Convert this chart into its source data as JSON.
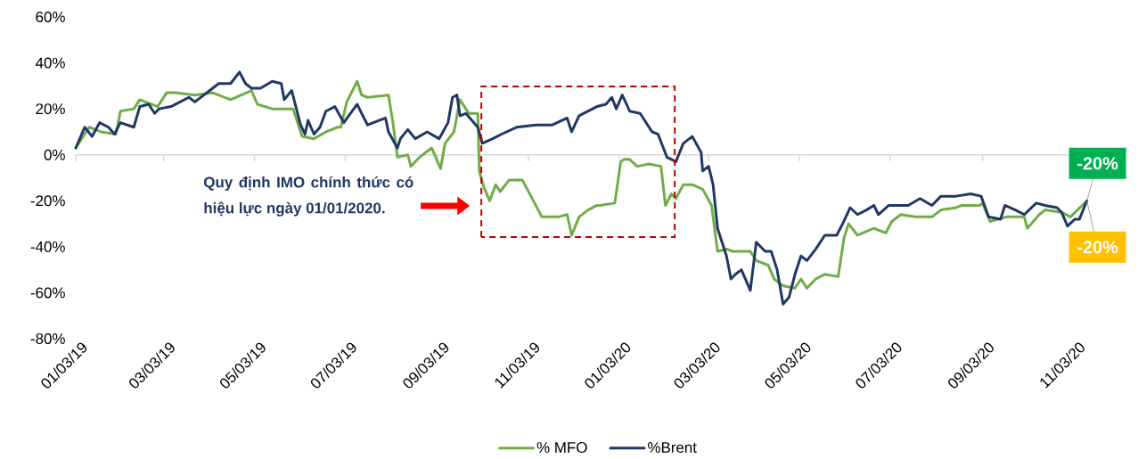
{
  "chart_data": {
    "type": "line",
    "xlim": [
      "2019-01-03",
      "2020-12-05"
    ],
    "xticks": [
      {
        "value": "2019-01-03",
        "label": "01/03/19"
      },
      {
        "value": "2019-03-03",
        "label": "03/03/19"
      },
      {
        "value": "2019-05-03",
        "label": "05/03/19"
      },
      {
        "value": "2019-07-03",
        "label": "07/03/19"
      },
      {
        "value": "2019-09-03",
        "label": "09/03/19"
      },
      {
        "value": "2019-11-03",
        "label": "11/03/19"
      },
      {
        "value": "2020-01-03",
        "label": "01/03/20"
      },
      {
        "value": "2020-03-03",
        "label": "03/03/20"
      },
      {
        "value": "2020-05-03",
        "label": "05/03/20"
      },
      {
        "value": "2020-07-03",
        "label": "07/03/20"
      },
      {
        "value": "2020-09-03",
        "label": "09/03/20"
      },
      {
        "value": "2020-11-03",
        "label": "11/03/20"
      }
    ],
    "ylim": [
      -80,
      60
    ],
    "yticks": [
      {
        "value": -80,
        "label": "-80%"
      },
      {
        "value": -60,
        "label": "-60%"
      },
      {
        "value": -40,
        "label": "-40%"
      },
      {
        "value": -20,
        "label": "-20%"
      },
      {
        "value": 0,
        "label": "0%"
      },
      {
        "value": 20,
        "label": "20%"
      },
      {
        "value": 40,
        "label": "40%"
      },
      {
        "value": 60,
        "label": "60%"
      }
    ],
    "legend": "bottom",
    "marker": "none",
    "line_style": "solid",
    "grid": false,
    "ref_lines": [
      {
        "axis": "y",
        "value": 0,
        "color": "#d9d9d9"
      }
    ],
    "annotations": [
      "Quy định IMO chính thức có hiệu lực ngày 01/01/2020.",
      {
        "text": "-20%",
        "x": "2020-11-12",
        "y": -20
      },
      {
        "text": "-20%",
        "x": "2020-11-12",
        "y": -20
      }
    ],
    "series": [
      {
        "name": "% MFO",
        "color": "#70ad47",
        "x": [
          "2019-01-03",
          "2019-01-12",
          "2019-01-20",
          "2019-01-30",
          "2019-02-02",
          "2019-02-11",
          "2019-02-15",
          "2019-02-27",
          "2019-03-05",
          "2019-03-11",
          "2019-03-24",
          "2019-04-05",
          "2019-04-17",
          "2019-05-01",
          "2019-05-05",
          "2019-05-15",
          "2019-05-29",
          "2019-06-04",
          "2019-06-12",
          "2019-06-20",
          "2019-06-28",
          "2019-06-30",
          "2019-07-04",
          "2019-07-11",
          "2019-07-14",
          "2019-07-18",
          "2019-08-01",
          "2019-08-04",
          "2019-08-07",
          "2019-08-14",
          "2019-08-16",
          "2019-08-22",
          "2019-08-30",
          "2019-09-05",
          "2019-09-08",
          "2019-09-14",
          "2019-09-18",
          "2019-09-24",
          "2019-09-30",
          "2019-10-01",
          "2019-10-04",
          "2019-10-08",
          "2019-10-12",
          "2019-10-15",
          "2019-10-21",
          "2019-10-30",
          "2019-11-12",
          "2019-11-23",
          "2019-11-29",
          "2019-12-02",
          "2019-12-07",
          "2019-12-13",
          "2019-12-19",
          "2019-12-21",
          "2019-12-31",
          "2020-01-04",
          "2020-01-06",
          "2020-01-10",
          "2020-01-15",
          "2020-01-23",
          "2020-01-31",
          "2020-02-03",
          "2020-02-07",
          "2020-02-10",
          "2020-02-15",
          "2020-02-21",
          "2020-02-28",
          "2020-03-05",
          "2020-03-09",
          "2020-03-15",
          "2020-03-19",
          "2020-03-31",
          "2020-04-04",
          "2020-04-12",
          "2020-04-16",
          "2020-04-22",
          "2020-04-30",
          "2020-05-04",
          "2020-05-08",
          "2020-05-14",
          "2020-05-20",
          "2020-05-29",
          "2020-06-02",
          "2020-06-05",
          "2020-06-11",
          "2020-06-22",
          "2020-06-30",
          "2020-07-04",
          "2020-07-10",
          "2020-07-20",
          "2020-07-31",
          "2020-08-06",
          "2020-08-16",
          "2020-08-20",
          "2020-09-01",
          "2020-09-03",
          "2020-09-08",
          "2020-09-19",
          "2020-10-01",
          "2020-10-03",
          "2020-10-11",
          "2020-10-15",
          "2020-10-26",
          "2020-11-01",
          "2020-11-12"
        ],
        "values": [
          3,
          12,
          10,
          9,
          19,
          20,
          24,
          21,
          27,
          27,
          26,
          27,
          24,
          28,
          22,
          20,
          20,
          8,
          7,
          10,
          12,
          12,
          23,
          32,
          26,
          25,
          26,
          14,
          -1,
          0,
          -5,
          -1,
          3,
          -6,
          5,
          10,
          24,
          18,
          18,
          -7,
          -14,
          -20,
          -13,
          -16,
          -11,
          -11,
          -27,
          -27,
          -26,
          -35,
          -27,
          -24,
          -22,
          -22,
          -21,
          -3,
          -2,
          -2,
          -5,
          -4,
          -5,
          -22,
          -17,
          -19,
          -13,
          -13,
          -15,
          -22,
          -42,
          -41,
          -42,
          -42,
          -46,
          -48,
          -54,
          -57,
          -58,
          -54,
          -58,
          -54,
          -52,
          -53,
          -36,
          -30,
          -35,
          -32,
          -34,
          -29,
          -26,
          -27,
          -27,
          -24,
          -23,
          -22,
          -22,
          -21,
          -29,
          -27,
          -27,
          -32,
          -26,
          -24,
          -25,
          -27,
          -20
        ]
      },
      {
        "name": "%Brent",
        "color": "#1f3864",
        "x": [
          "2019-01-03",
          "2019-01-09",
          "2019-01-14",
          "2019-01-19",
          "2019-01-25",
          "2019-01-29",
          "2019-02-02",
          "2019-02-11",
          "2019-02-15",
          "2019-02-21",
          "2019-02-25",
          "2019-02-28",
          "2019-03-08",
          "2019-03-14",
          "2019-03-20",
          "2019-03-24",
          "2019-04-03",
          "2019-04-09",
          "2019-04-17",
          "2019-04-23",
          "2019-04-27",
          "2019-05-01",
          "2019-05-07",
          "2019-05-15",
          "2019-05-21",
          "2019-05-23",
          "2019-05-28",
          "2019-06-03",
          "2019-06-06",
          "2019-06-08",
          "2019-06-12",
          "2019-06-16",
          "2019-06-20",
          "2019-06-26",
          "2019-07-02",
          "2019-07-11",
          "2019-07-14",
          "2019-07-18",
          "2019-07-30",
          "2019-08-01",
          "2019-08-07",
          "2019-08-09",
          "2019-08-14",
          "2019-08-19",
          "2019-08-27",
          "2019-09-04",
          "2019-09-10",
          "2019-09-13",
          "2019-09-16",
          "2019-09-18",
          "2019-09-22",
          "2019-09-30",
          "2019-10-03",
          "2019-10-10",
          "2019-10-16",
          "2019-10-26",
          "2019-11-08",
          "2019-11-19",
          "2019-11-29",
          "2019-12-02",
          "2019-12-07",
          "2019-12-19",
          "2019-12-25",
          "2019-12-29",
          "2020-01-01",
          "2020-01-05",
          "2020-01-10",
          "2020-01-17",
          "2020-01-25",
          "2020-01-29",
          "2020-02-04",
          "2020-02-10",
          "2020-02-15",
          "2020-02-21",
          "2020-02-27",
          "2020-02-28",
          "2020-03-03",
          "2020-03-06",
          "2020-03-09",
          "2020-03-12",
          "2020-03-15",
          "2020-03-18",
          "2020-03-21",
          "2020-03-25",
          "2020-03-31",
          "2020-04-04",
          "2020-04-10",
          "2020-04-14",
          "2020-04-18",
          "2020-04-22",
          "2020-04-26",
          "2020-04-30",
          "2020-05-04",
          "2020-05-08",
          "2020-05-14",
          "2020-05-20",
          "2020-05-28",
          "2020-06-01",
          "2020-06-06",
          "2020-06-11",
          "2020-06-17",
          "2020-06-22",
          "2020-06-25",
          "2020-07-02",
          "2020-07-15",
          "2020-07-23",
          "2020-07-31",
          "2020-08-06",
          "2020-08-16",
          "2020-08-26",
          "2020-09-02",
          "2020-09-07",
          "2020-09-15",
          "2020-09-18",
          "2020-09-25",
          "2020-10-01",
          "2020-10-09",
          "2020-10-15",
          "2020-10-23",
          "2020-10-26",
          "2020-10-30",
          "2020-11-04",
          "2020-11-07",
          "2020-11-12"
        ],
        "values": [
          3,
          12,
          8,
          14,
          12,
          9,
          14,
          12,
          21,
          22,
          18,
          20,
          21,
          23,
          25,
          23,
          28,
          31,
          31,
          36,
          31,
          29,
          29,
          32,
          31,
          24,
          28,
          13,
          9,
          15,
          9,
          12,
          19,
          21,
          14,
          22,
          18,
          13,
          16,
          10,
          3,
          7,
          11,
          7,
          10,
          7,
          14,
          25,
          26,
          17,
          18,
          12,
          5,
          7,
          9,
          12,
          13,
          13,
          16,
          10,
          17,
          21,
          22,
          25,
          20,
          26,
          19,
          18,
          10,
          9,
          -1,
          -3,
          5,
          8,
          1,
          -7,
          -5,
          -13,
          -32,
          -38,
          -44,
          -54,
          -52,
          -50,
          -59,
          -38,
          -42,
          -42,
          -50,
          -65,
          -62,
          -52,
          -44,
          -46,
          -41,
          -35,
          -35,
          -30,
          -23,
          -26,
          -24,
          -22,
          -26,
          -22,
          -22,
          -19,
          -22,
          -18,
          -18,
          -17,
          -18,
          -27,
          -28,
          -22,
          -24,
          -26,
          -21,
          -22,
          -23,
          -25,
          -31,
          -28,
          -28,
          -20
        ]
      }
    ]
  }
}
